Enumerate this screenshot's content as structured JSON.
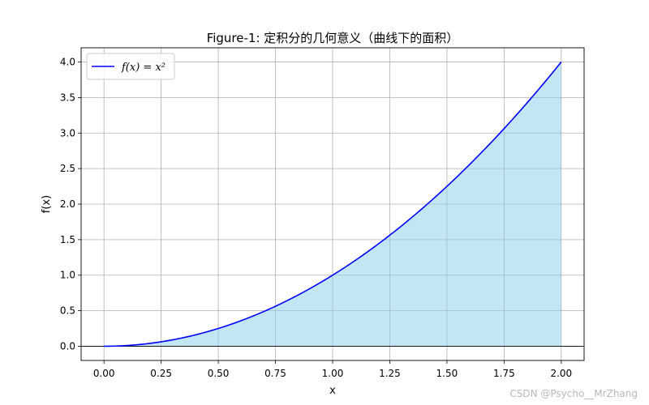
{
  "chart_data": {
    "type": "line",
    "title": "Figure-1: 定积分的几何意义（曲线下的面积）",
    "xlabel": "x",
    "ylabel": "f(x)",
    "xlim": [
      -0.1,
      2.1
    ],
    "ylim": [
      -0.2,
      4.2
    ],
    "xticks": [
      0.0,
      0.25,
      0.5,
      0.75,
      1.0,
      1.25,
      1.5,
      1.75,
      2.0
    ],
    "xtick_labels": [
      "0.00",
      "0.25",
      "0.50",
      "0.75",
      "1.00",
      "1.25",
      "1.50",
      "1.75",
      "2.00"
    ],
    "yticks": [
      0.0,
      0.5,
      1.0,
      1.5,
      2.0,
      2.5,
      3.0,
      3.5,
      4.0
    ],
    "ytick_labels": [
      "0.0",
      "0.5",
      "1.0",
      "1.5",
      "2.0",
      "2.5",
      "3.0",
      "3.5",
      "4.0"
    ],
    "grid": true,
    "legend_position": "top-left",
    "series": [
      {
        "name": "f(x) = x²",
        "function": "x^2",
        "color": "#0000ff",
        "x": [
          0.0,
          0.1,
          0.2,
          0.3,
          0.4,
          0.5,
          0.6,
          0.7,
          0.8,
          0.9,
          1.0,
          1.1,
          1.2,
          1.3,
          1.4,
          1.5,
          1.6,
          1.7,
          1.8,
          1.9,
          2.0
        ],
        "y": [
          0.0,
          0.01,
          0.04,
          0.09,
          0.16,
          0.25,
          0.36,
          0.49,
          0.64,
          0.81,
          1.0,
          1.21,
          1.44,
          1.69,
          1.96,
          2.25,
          2.56,
          2.89,
          3.24,
          3.61,
          4.0
        ]
      }
    ],
    "fill": {
      "under_series": 0,
      "from": 0,
      "to": 2,
      "color": "#87ceeb",
      "opacity": 0.5
    },
    "zero_line": true
  },
  "watermark": "CSDN @Psycho__MrZhang"
}
